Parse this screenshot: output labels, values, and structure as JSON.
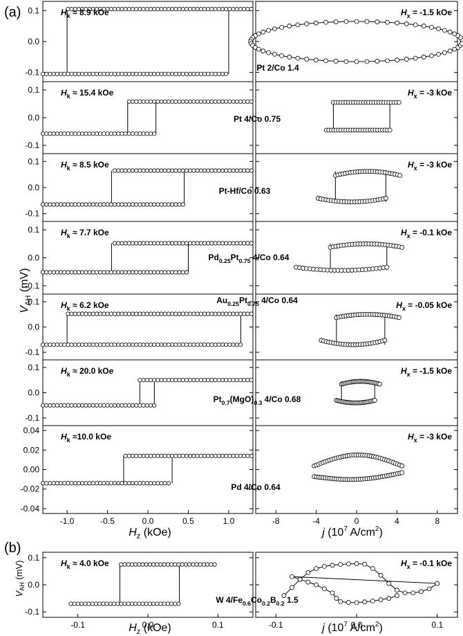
{
  "panel_labels": {
    "a": "(a)",
    "b": "(b)"
  },
  "axis_labels": {
    "ylabel_a_main": "V",
    "ylabel_a_sub": "AH",
    "ylabel_a_unit": " (mV)",
    "ylabel_b_main": "V",
    "ylabel_b_sub": "AH",
    "ylabel_b_unit": " (mV)",
    "xlabel_left_main": "H",
    "xlabel_left_sub": "z",
    "xlabel_left_unit": " (kOe)",
    "xlabel_right_main": "j",
    "xlabel_right_unit": " (10",
    "xlabel_right_exp": "7",
    "xlabel_right_unit2": " A/cm",
    "xlabel_right_exp2": "2",
    "xlabel_right_close": ")"
  },
  "chart_data": [
    {
      "type": "scatter",
      "panel": "a",
      "row": 1,
      "sample_label": "Pt 2/Co 1.4",
      "left": {
        "hk_text": " ≈ 8.9 kOe",
        "ylim": [
          -0.13,
          0.13
        ],
        "yticks": [
          "0.1",
          "0.0",
          "-0.1"
        ],
        "ytick_values": [
          0.1,
          0.0,
          -0.1
        ],
        "xlim": [
          -1.3,
          1.3
        ],
        "high": 0.105,
        "low": -0.105,
        "sw_up": 1.0,
        "sw_down": -1.0
      },
      "right": {
        "hx_text": " = -1.5 kOe",
        "xlim": [
          -10,
          10
        ],
        "shape": "ellipse",
        "amp": 0.065,
        "width": 10.5,
        "center": 0.0
      }
    },
    {
      "type": "scatter",
      "panel": "a",
      "row": 2,
      "sample_label": "Pt 4/Co 0.75",
      "left": {
        "hk_text": " ≈ 15.4 kOe",
        "ylim": [
          -0.13,
          0.13
        ],
        "yticks": [
          "0.1",
          "0.0",
          "-0.1"
        ],
        "ytick_values": [
          0.1,
          0.0,
          -0.1
        ],
        "xlim": [
          -1.3,
          1.3
        ],
        "high": 0.058,
        "low": -0.058,
        "sw_up": 0.1,
        "sw_down": -0.25
      },
      "right": {
        "hx_text": " = -3 kOe",
        "xlim": [
          -10,
          10
        ],
        "shape": "square",
        "high": 0.055,
        "low": -0.045,
        "sw_up": 3.3,
        "sw_down": -2.3,
        "xmin": -3.0,
        "xmax": 4.2
      }
    },
    {
      "type": "scatter",
      "panel": "a",
      "row": 3,
      "sample_label": "Pt-Hf/Co 0.63",
      "left": {
        "hk_text": " ≈ 8.5 kOe",
        "ylim": [
          -0.13,
          0.13
        ],
        "yticks": [
          "0.1",
          "0.0",
          "-0.1"
        ],
        "ytick_values": [
          0.1,
          0.0,
          -0.1
        ],
        "xlim": [
          -1.3,
          1.3
        ],
        "high": 0.065,
        "low": -0.065,
        "sw_up": -0.45,
        "sw_down": 0.45
      },
      "right": {
        "hx_text": " = -3 kOe",
        "xlim": [
          -10,
          10
        ],
        "shape": "curved",
        "high": 0.062,
        "low": -0.055,
        "sw_up": 2.9,
        "sw_down": -2.1,
        "xmin": -3.8,
        "xmax": 4.3
      }
    },
    {
      "type": "scatter",
      "panel": "a",
      "row": 4,
      "sample_label_parts": [
        "Pd",
        "0.25",
        "Pt",
        "0.75",
        " 4/Co 0.64"
      ],
      "left": {
        "hk_text": " ≈ 7.7 kOe",
        "ylim": [
          -0.13,
          0.13
        ],
        "yticks": [
          "0.1",
          "0.0",
          "-0.1"
        ],
        "ytick_values": [
          0.1,
          0.0,
          -0.1
        ],
        "xlim": [
          -1.3,
          1.3
        ],
        "high": 0.052,
        "low": -0.052,
        "sw_up": 0.5,
        "sw_down": -0.45
      },
      "right": {
        "hx_text": " = -0.1 kOe",
        "xlim": [
          -10,
          10
        ],
        "shape": "curved",
        "high": 0.05,
        "low": -0.045,
        "sw_up": 3.0,
        "sw_down": -2.6,
        "xmin": -6.0,
        "xmax": 4.5
      }
    },
    {
      "type": "scatter",
      "panel": "a",
      "row": 5,
      "sample_label_parts": [
        "Au",
        "0.25",
        "Pt",
        "0.75",
        " 4/Co 0.64"
      ],
      "left": {
        "hk_text": " ≈ 6.2 kOe",
        "ylim": [
          -0.13,
          0.13
        ],
        "yticks": [
          "0.1",
          "0.0",
          "-0.1"
        ],
        "ytick_values": [
          0.1,
          0.0,
          -0.1
        ],
        "xlim": [
          -1.3,
          1.3
        ],
        "high": 0.052,
        "low": -0.07,
        "sw_up": 1.15,
        "sw_down": -1.0
      },
      "right": {
        "hx_text": " = -0.05 kOe",
        "xlim": [
          -10,
          10
        ],
        "shape": "curved",
        "high": 0.05,
        "low": -0.07,
        "sw_up": 2.8,
        "sw_down": -2.0,
        "xmin": -3.5,
        "xmax": 4.2
      }
    },
    {
      "type": "scatter",
      "panel": "a",
      "row": 6,
      "sample_label_parts": [
        "Pt",
        "0.7",
        "(MgO)",
        "0.3",
        " 4/Co 0.68"
      ],
      "left": {
        "hk_text": " ≈ 20.0 kOe",
        "ylim": [
          -0.13,
          0.13
        ],
        "yticks": [
          "0.1",
          "0.0",
          "-0.1"
        ],
        "ytick_values": [
          0.1,
          0.0,
          -0.1
        ],
        "xlim": [
          -1.3,
          1.3
        ],
        "high": 0.05,
        "low": -0.05,
        "sw_up": 0.08,
        "sw_down": -0.1
      },
      "right": {
        "hx_text": " = -1.5 kOe",
        "xlim": [
          -10,
          10
        ],
        "shape": "curved",
        "high": 0.045,
        "low": -0.04,
        "sw_up": 1.8,
        "sw_down": -1.5,
        "xmin": -2.0,
        "xmax": 2.3
      }
    },
    {
      "type": "scatter",
      "panel": "a",
      "row": 7,
      "sample_label": "Pd  4/Co 0.64",
      "left": {
        "hk_text": " ≈10.0 kOe",
        "ylim": [
          -0.045,
          0.045
        ],
        "yticks": [
          "0.04",
          "0.02",
          "0.00",
          "-0.02",
          "-0.04"
        ],
        "ytick_values": [
          0.04,
          0.02,
          0.0,
          -0.02,
          -0.04
        ],
        "xlim": [
          -1.3,
          1.3
        ],
        "high": 0.014,
        "low": -0.014,
        "sw_up": 0.3,
        "sw_down": -0.3
      },
      "right": {
        "hx_text": " = -3 kOe",
        "xlim": [
          -10,
          10
        ],
        "shape": "lens",
        "high": 0.015,
        "low": -0.012,
        "xmin": -4.2,
        "xmax": 4.5
      },
      "xticks_left": [
        "-1.0",
        "-0.5",
        "0.0",
        "0.5",
        "1.0"
      ],
      "xtick_values_left": [
        -1.0,
        -0.5,
        0.0,
        0.5,
        1.0
      ],
      "xticks_right": [
        "-8",
        "-4",
        "0",
        "4",
        "8"
      ],
      "xtick_values_right": [
        -8,
        -4,
        0,
        4,
        8
      ]
    },
    {
      "type": "scatter",
      "panel": "b",
      "row": 1,
      "sample_label_parts": [
        "W 4/Fe",
        "0.6",
        "Co",
        "0.2",
        "B",
        "0.2",
        " 1.5"
      ],
      "left": {
        "hk_text": " ≈ 4.0 kOe",
        "ylim": [
          -0.12,
          0.12
        ],
        "yticks": [
          "0.1",
          "0.0",
          "-0.1"
        ],
        "ytick_values": [
          0.1,
          0.0,
          -0.1
        ],
        "xlim": [
          -0.15,
          0.15
        ],
        "high": 0.075,
        "low": -0.07,
        "sw_up": 0.045,
        "sw_down": -0.04,
        "xmin": -0.11,
        "xmax": 0.1
      },
      "right": {
        "hx_text": " = -0.1 kOe",
        "xlim": [
          -0.125,
          0.125
        ],
        "shape": "b"
      },
      "xticks_left": [
        "-0.1",
        "0.0",
        "0.1"
      ],
      "xtick_values_left": [
        -0.1,
        0.0,
        0.1
      ],
      "xticks_right": [
        "-0.1",
        "0.0",
        "0.1"
      ],
      "xtick_values_right": [
        -0.1,
        0.0,
        0.1
      ]
    }
  ]
}
